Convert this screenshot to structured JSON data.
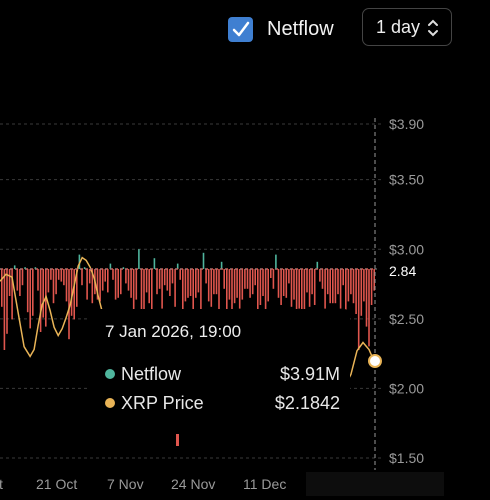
{
  "toolbar": {
    "netflow_label": "Netflow",
    "netflow_checked": true,
    "range_value": "1 day"
  },
  "price_tag": "2.84",
  "tooltip": {
    "date": "7 Jan 2026, 19:00",
    "rows": [
      {
        "name": "Netflow",
        "value": "$3.91M",
        "color": "#4fb59d"
      },
      {
        "name": "XRP Price",
        "value": "$2.1842",
        "color": "#e9b457"
      }
    ]
  },
  "colors": {
    "positive": "#4fb59d",
    "negative": "#e0564e",
    "price_line": "#e9b457",
    "grid": "#3a3a3a"
  },
  "chart_data": {
    "type": "bar",
    "y_right_label_ticks": [
      "$3.90",
      "$3.50",
      "$3.00",
      "$2.50",
      "$2.00",
      "$1.50"
    ],
    "y_right_tick_values": [
      3.9,
      3.5,
      3.0,
      2.5,
      2.0,
      1.5
    ],
    "y_right_range": [
      1.5,
      3.9
    ],
    "x_tick_labels": [
      "ct",
      "21 Oct",
      "7 Nov",
      "24 Nov",
      "11 Dec",
      "7 Jan 2026, 19:00"
    ],
    "crosshair_price": 2.84,
    "netflow_series": {
      "name": "Netflow",
      "values": [
        -2.1,
        -4.5,
        -3.6,
        -1.5,
        -2.8,
        0.2,
        -1.2,
        -1.5,
        -0.9,
        0.1,
        -2.4,
        -3.3,
        -2.6,
        0.1,
        -1.2,
        -3.5,
        -2.7,
        -3.2,
        -1.3,
        -0.6,
        -1.9,
        -1.4,
        -0.6,
        -0.7,
        -0.9,
        -1.8,
        -3.9,
        -2.6,
        -2.8,
        -2.1,
        0.8,
        -0.9,
        0.1,
        -1.7,
        -0.8,
        -1.9,
        -1.4,
        -1.7,
        -1.8,
        -1.2,
        -0.7,
        -1.3,
        0.3,
        -0.6,
        -1.7,
        -1.6,
        -1.4,
        0.1,
        -0.8,
        -1.2,
        -1.6,
        -2.4,
        -1.7,
        1.1,
        -2.8,
        -2.6,
        -1.3,
        -1.9,
        -2.7,
        0.6,
        -1.4,
        -1.1,
        -2.2,
        -0.9,
        -1.2,
        -1.5,
        -0.8,
        -2.1,
        0.3,
        -0.6,
        -2.4,
        -1.8,
        -1.6,
        -1.5,
        -2.4,
        -1.6,
        -1.3,
        -2.9,
        0.9,
        -0.8,
        -1.8,
        -2.1,
        -1.4,
        -1.4,
        -2.6,
        0.4,
        -1.1,
        -2.8,
        -1.7,
        -2.3,
        -1.9,
        -1.6,
        -2.2,
        -1.7,
        -1.1,
        -1.1,
        -1.6,
        -1.4,
        -0.9,
        -2.3,
        -2.0,
        -1.5,
        -2.6,
        -1.8,
        -0.5,
        -1.1,
        0.8,
        -1.6,
        -2.0,
        -1.5,
        -1.6,
        -0.8,
        -2.1,
        -1.7,
        -2.5,
        -2.2,
        -2.5,
        -2.3,
        -1.3,
        -2.1,
        -1.4,
        -2.0,
        0.4,
        -0.7,
        -1.1,
        -2.2,
        -1.4,
        -1.9,
        -1.9,
        -1.9,
        -1.4,
        -2.2,
        -0.9,
        -2.4,
        -1.8,
        -1.4,
        -1.9,
        -2.5,
        -4.5,
        -2.6,
        -1.8,
        -3.2,
        -4.3,
        -2.0,
        -1.2
      ]
    },
    "price_series": {
      "name": "XRP Price",
      "visible_segments": [
        [
          [
            0,
            2.77
          ],
          [
            3,
            2.82
          ],
          [
            6,
            2.8
          ],
          [
            9,
            2.55
          ],
          [
            12,
            2.3
          ],
          [
            15,
            2.23
          ],
          [
            17,
            2.28
          ],
          [
            19,
            2.45
          ],
          [
            21,
            2.6
          ],
          [
            23,
            2.66
          ],
          [
            25,
            2.56
          ],
          [
            27,
            2.44
          ],
          [
            29,
            2.38
          ],
          [
            31,
            2.43
          ],
          [
            33,
            2.51
          ],
          [
            35,
            2.6
          ],
          [
            37,
            2.74
          ],
          [
            39,
            2.88
          ],
          [
            41,
            2.94
          ],
          [
            43,
            2.92
          ],
          [
            45,
            2.87
          ],
          [
            47,
            2.79
          ],
          [
            49,
            2.66
          ],
          [
            51,
            2.55
          ]
        ],
        [
          [
            138,
            2.47
          ],
          [
            141,
            2.28
          ],
          [
            143,
            2.33
          ],
          [
            145,
            2.2
          ]
        ],
        [
          [
            169,
            1.9
          ],
          [
            172,
            2.02
          ],
          [
            175,
            2.1
          ],
          [
            178,
            2.27
          ],
          [
            181,
            2.33
          ],
          [
            184,
            2.28
          ],
          [
            187,
            2.18
          ]
        ]
      ]
    }
  }
}
